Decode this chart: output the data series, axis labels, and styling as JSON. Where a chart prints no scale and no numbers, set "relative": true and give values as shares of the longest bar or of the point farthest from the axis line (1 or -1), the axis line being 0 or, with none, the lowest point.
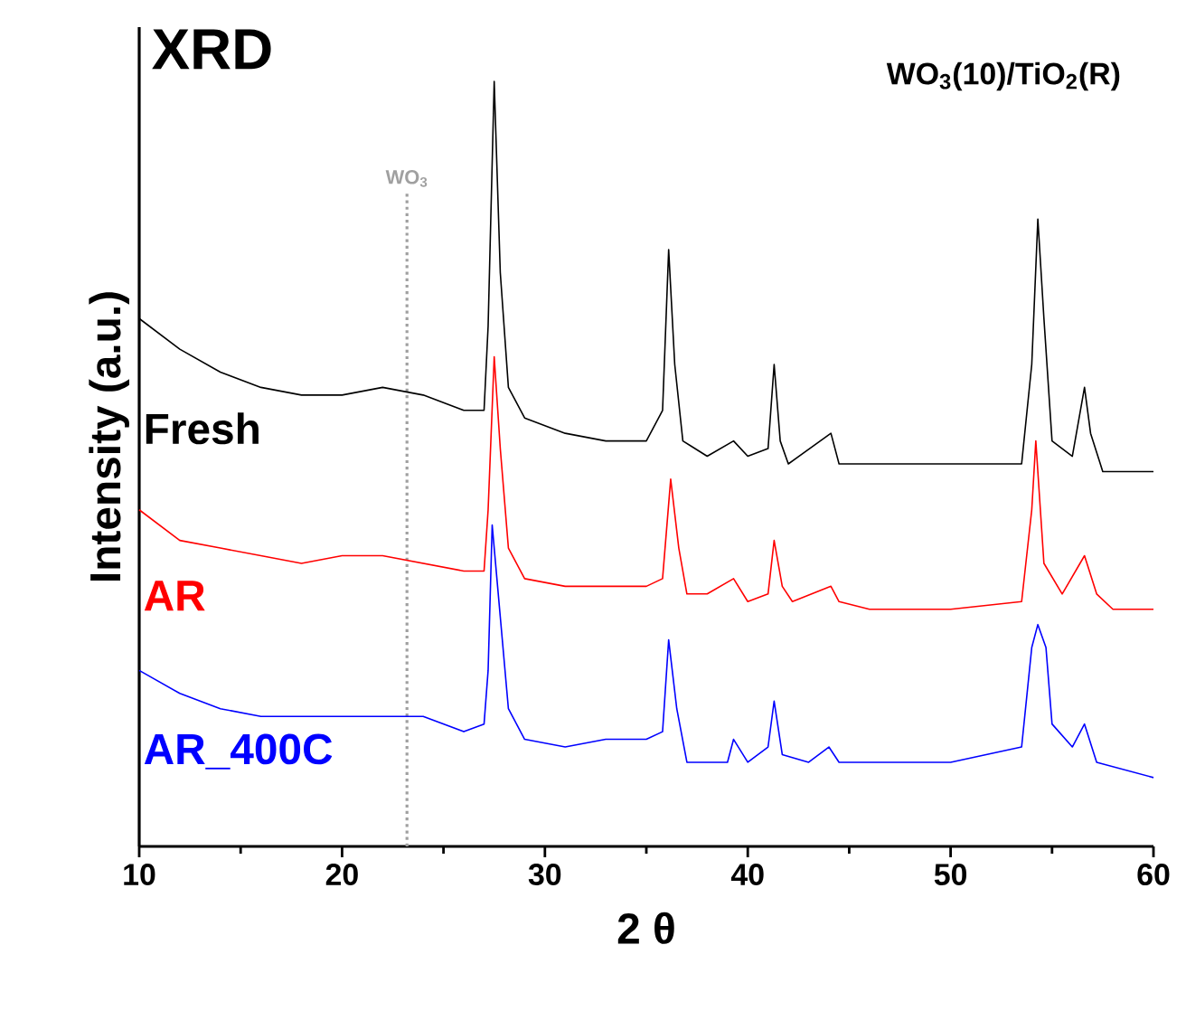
{
  "chart_data": {
    "type": "line",
    "relative": true,
    "title": "XRD",
    "subtitle": "WO$_{3}$(10)/TiO$_{2}$(R)",
    "xlabel": "2 θ",
    "ylabel": "Intensity (a.u.)",
    "xlim": [
      10,
      60
    ],
    "xticks": [
      10,
      20,
      30,
      40,
      50,
      60
    ],
    "tick_labels": "x",
    "line_style": "solid",
    "ref_lines": [
      {
        "axis": "x",
        "value": 23.2,
        "label": "WO$_{3}$",
        "color": "#a0a0a0",
        "line_style": "dotted"
      }
    ],
    "series": [
      {
        "name": "Fresh",
        "color": "#000000",
        "x": [
          10,
          12,
          14,
          16,
          18,
          20,
          22,
          24,
          26,
          27,
          27.2,
          27.5,
          27.8,
          28.2,
          29,
          31,
          33,
          35,
          35.8,
          36.1,
          36.4,
          36.8,
          38,
          39.3,
          40,
          41,
          41.3,
          41.6,
          42,
          44.1,
          44.5,
          46,
          50,
          53.5,
          54,
          54.3,
          54.6,
          55,
          56,
          56.6,
          56.9,
          57.5,
          60
        ],
        "values": [
          0.69,
          0.65,
          0.62,
          0.6,
          0.59,
          0.59,
          0.6,
          0.59,
          0.57,
          0.57,
          0.68,
          1.0,
          0.75,
          0.6,
          0.56,
          0.54,
          0.53,
          0.53,
          0.57,
          0.78,
          0.63,
          0.53,
          0.51,
          0.53,
          0.51,
          0.52,
          0.63,
          0.53,
          0.5,
          0.54,
          0.5,
          0.5,
          0.5,
          0.5,
          0.63,
          0.82,
          0.69,
          0.53,
          0.51,
          0.6,
          0.54,
          0.49,
          0.49
        ]
      },
      {
        "name": "AR",
        "color": "#ff0000",
        "x": [
          10,
          12,
          14,
          16,
          18,
          20,
          22,
          24,
          26,
          27,
          27.2,
          27.5,
          27.8,
          28.2,
          29,
          31,
          33,
          35,
          35.8,
          36.2,
          36.6,
          37,
          38,
          39.3,
          40,
          41,
          41.3,
          41.7,
          42.2,
          44.1,
          44.5,
          46,
          50,
          53.5,
          54,
          54.2,
          54.6,
          55.5,
          56.6,
          57.2,
          58,
          60
        ],
        "values": [
          0.44,
          0.4,
          0.39,
          0.38,
          0.37,
          0.38,
          0.38,
          0.37,
          0.36,
          0.36,
          0.44,
          0.64,
          0.52,
          0.39,
          0.35,
          0.34,
          0.34,
          0.34,
          0.35,
          0.48,
          0.39,
          0.33,
          0.33,
          0.35,
          0.32,
          0.33,
          0.4,
          0.34,
          0.32,
          0.34,
          0.32,
          0.31,
          0.31,
          0.32,
          0.44,
          0.53,
          0.37,
          0.33,
          0.38,
          0.33,
          0.31,
          0.31
        ]
      },
      {
        "name": "AR_400C",
        "color": "#0000ff",
        "x": [
          10,
          12,
          14,
          16,
          18,
          20,
          22,
          24,
          26,
          27,
          27.2,
          27.4,
          27.8,
          28.2,
          29,
          31,
          33,
          35,
          35.8,
          36.1,
          36.5,
          37,
          39,
          39.3,
          40,
          41,
          41.3,
          41.7,
          43,
          44,
          44.5,
          46,
          50,
          53.5,
          54,
          54.3,
          54.7,
          55,
          56,
          56.6,
          57.2,
          60
        ],
        "values": [
          0.23,
          0.2,
          0.18,
          0.17,
          0.17,
          0.17,
          0.17,
          0.17,
          0.15,
          0.16,
          0.23,
          0.42,
          0.3,
          0.18,
          0.14,
          0.13,
          0.14,
          0.14,
          0.15,
          0.27,
          0.18,
          0.11,
          0.11,
          0.14,
          0.11,
          0.13,
          0.19,
          0.12,
          0.11,
          0.13,
          0.11,
          0.11,
          0.11,
          0.13,
          0.26,
          0.29,
          0.26,
          0.16,
          0.13,
          0.16,
          0.11,
          0.09
        ]
      }
    ]
  }
}
